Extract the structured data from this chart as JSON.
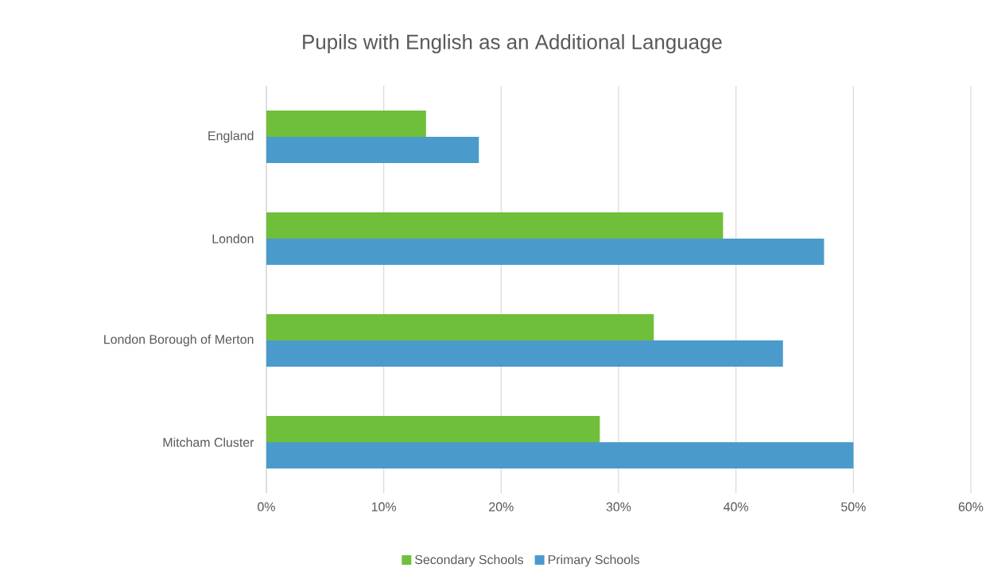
{
  "chart_data": {
    "type": "bar",
    "orientation": "horizontal",
    "title": "Pupils with English as an Additional Language",
    "categories": [
      "England",
      "London",
      "London Borough of Merton",
      "Mitcham Cluster"
    ],
    "series": [
      {
        "name": "Secondary Schools",
        "color": "#70bf3a",
        "values": [
          13.6,
          38.9,
          33.0,
          28.4
        ]
      },
      {
        "name": "Primary Schools",
        "color": "#4a9bcb",
        "values": [
          18.1,
          47.5,
          44.0,
          50.0
        ]
      }
    ],
    "xlim": [
      0,
      60
    ],
    "xticks": [
      {
        "value": 0,
        "label": "0%"
      },
      {
        "value": 10,
        "label": "10%"
      },
      {
        "value": 20,
        "label": "20%"
      },
      {
        "value": 30,
        "label": "30%"
      },
      {
        "value": 40,
        "label": "40%"
      },
      {
        "value": 50,
        "label": "50%"
      },
      {
        "value": 60,
        "label": "60%"
      }
    ],
    "grid": "x",
    "legend": "bottom"
  }
}
